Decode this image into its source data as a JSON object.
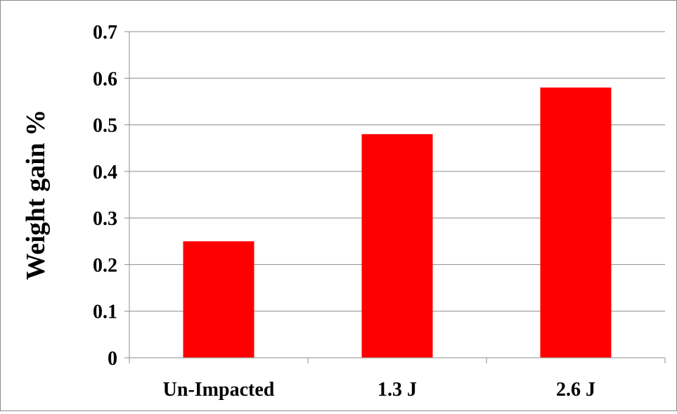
{
  "chart_data": {
    "type": "bar",
    "categories": [
      "Un-Impacted",
      "1.3 J",
      "2.6 J"
    ],
    "values": [
      0.25,
      0.48,
      0.58
    ],
    "title": "",
    "xlabel": "",
    "ylabel": "Weight gain %",
    "ylim": [
      0,
      0.7
    ],
    "yticks": [
      "0",
      "0.1",
      "0.2",
      "0.3",
      "0.4",
      "0.5",
      "0.6",
      "0.7"
    ],
    "grid": true,
    "legend": "none",
    "bar_color": "#ff0000",
    "gridline_color": "#8c8c8c",
    "axis_color": "#8c8c8c"
  }
}
